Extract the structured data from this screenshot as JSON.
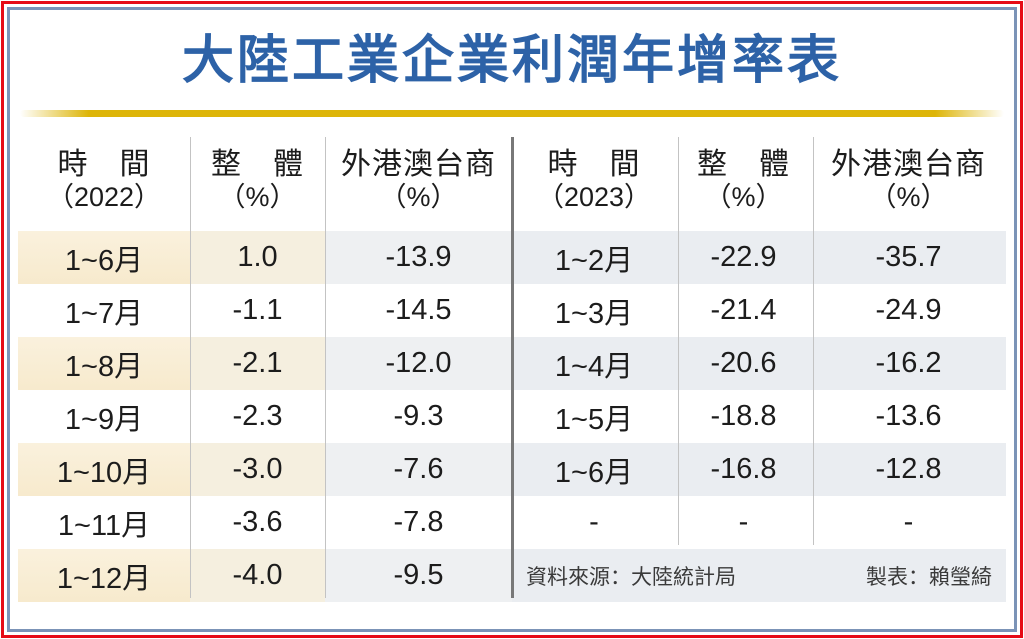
{
  "title": "大陸工業企業利潤年增率表",
  "colors": {
    "title_blue": "#2d62a7",
    "gold_line": "#ddb508",
    "outer_border_red": "#e60b16",
    "inner_border_blue": "#7b93b7",
    "shade_cream": "#f8ecd2",
    "shade_gray": "#eaedf1",
    "divider_light": "#c3c3c3",
    "divider_dark": "#787878"
  },
  "table": {
    "left": {
      "headers": [
        {
          "line1": "時　間",
          "line2": "（2022）"
        },
        {
          "line1": "整　體",
          "line2": "（%）"
        },
        {
          "line1": "外港澳台商",
          "line2": "（%）"
        }
      ],
      "rows": [
        [
          "1~6月",
          "1.0",
          "-13.9"
        ],
        [
          "1~7月",
          "-1.1",
          "-14.5"
        ],
        [
          "1~8月",
          "-2.1",
          "-12.0"
        ],
        [
          "1~9月",
          "-2.3",
          "-9.3"
        ],
        [
          "1~10月",
          "-3.0",
          "-7.6"
        ],
        [
          "1~11月",
          "-3.6",
          "-7.8"
        ],
        [
          "1~12月",
          "-4.0",
          "-9.5"
        ]
      ]
    },
    "right": {
      "headers": [
        {
          "line1": "時　間",
          "line2": "（2023）"
        },
        {
          "line1": "整　體",
          "line2": "（%）"
        },
        {
          "line1": "外港澳台商",
          "line2": "（%）"
        }
      ],
      "rows": [
        [
          "1~2月",
          "-22.9",
          "-35.7"
        ],
        [
          "1~3月",
          "-21.4",
          "-24.9"
        ],
        [
          "1~4月",
          "-20.6",
          "-16.2"
        ],
        [
          "1~5月",
          "-18.8",
          "-13.6"
        ],
        [
          "1~6月",
          "-16.8",
          "-12.8"
        ],
        [
          "-",
          "-",
          "-"
        ]
      ]
    },
    "footer": {
      "source": "資料來源：大陸統計局",
      "credit": "製表：賴瑩綺"
    }
  },
  "chart_data": {
    "type": "table",
    "title": "大陸工業企業利潤年增率表",
    "tables": [
      {
        "year": "2022",
        "columns": [
          "時間（2022）",
          "整體（%）",
          "外港澳台商（%）"
        ],
        "rows": [
          [
            "1~6月",
            1.0,
            -13.9
          ],
          [
            "1~7月",
            -1.1,
            -14.5
          ],
          [
            "1~8月",
            -2.1,
            -12.0
          ],
          [
            "1~9月",
            -2.3,
            -9.3
          ],
          [
            "1~10月",
            -3.0,
            -7.6
          ],
          [
            "1~11月",
            -3.6,
            -7.8
          ],
          [
            "1~12月",
            -4.0,
            -9.5
          ]
        ]
      },
      {
        "year": "2023",
        "columns": [
          "時間（2023）",
          "整體（%）",
          "外港澳台商（%）"
        ],
        "rows": [
          [
            "1~2月",
            -22.9,
            -35.7
          ],
          [
            "1~3月",
            -21.4,
            -24.9
          ],
          [
            "1~4月",
            -20.6,
            -16.2
          ],
          [
            "1~5月",
            -18.8,
            -13.6
          ],
          [
            "1~6月",
            -16.8,
            -12.8
          ],
          [
            "-",
            "-",
            "-"
          ]
        ]
      }
    ],
    "source": "資料來源：大陸統計局",
    "credit": "製表：賴瑩綺"
  }
}
